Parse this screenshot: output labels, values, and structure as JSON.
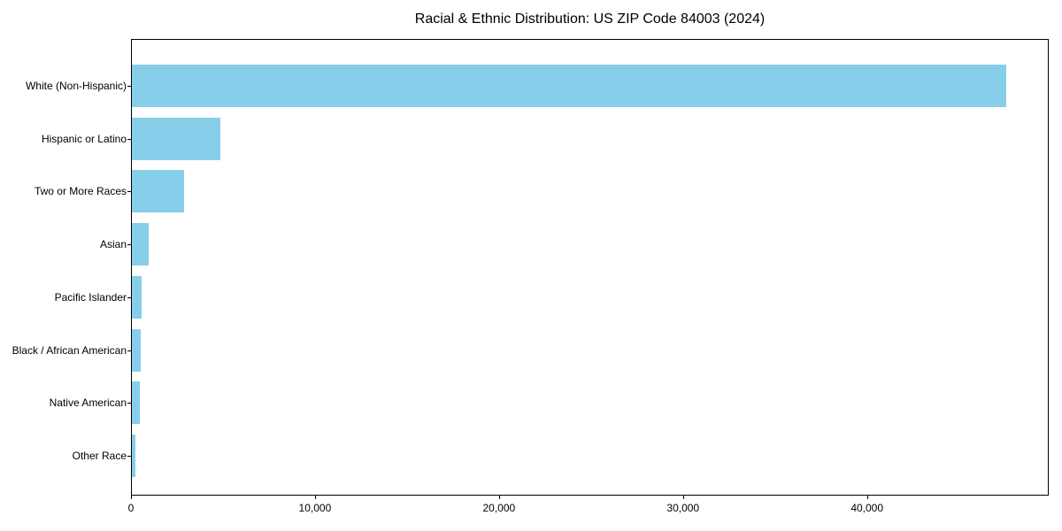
{
  "chart_data": {
    "type": "bar",
    "orientation": "horizontal",
    "title": "Racial & Ethnic Distribution: US ZIP Code 84003 (2024)",
    "xlabel": "",
    "ylabel": "",
    "categories": [
      "White (Non-Hispanic)",
      "Hispanic or Latino",
      "Two or More Races",
      "Asian",
      "Pacific Islander",
      "Black / African American",
      "Native American",
      "Other Race"
    ],
    "values": [
      47500,
      4800,
      2850,
      900,
      550,
      500,
      450,
      190
    ],
    "xlim": [
      0,
      49875
    ],
    "xticks": [
      {
        "value": 0,
        "label": "0"
      },
      {
        "value": 10000,
        "label": "10,000"
      },
      {
        "value": 20000,
        "label": "20,000"
      },
      {
        "value": 30000,
        "label": "30,000"
      },
      {
        "value": 40000,
        "label": "40,000"
      }
    ],
    "grid": false,
    "legend": null,
    "bar_color": "#87CEEB",
    "axis_color": "#000000",
    "text_color": "#000000",
    "background_color": "#ffffff"
  }
}
